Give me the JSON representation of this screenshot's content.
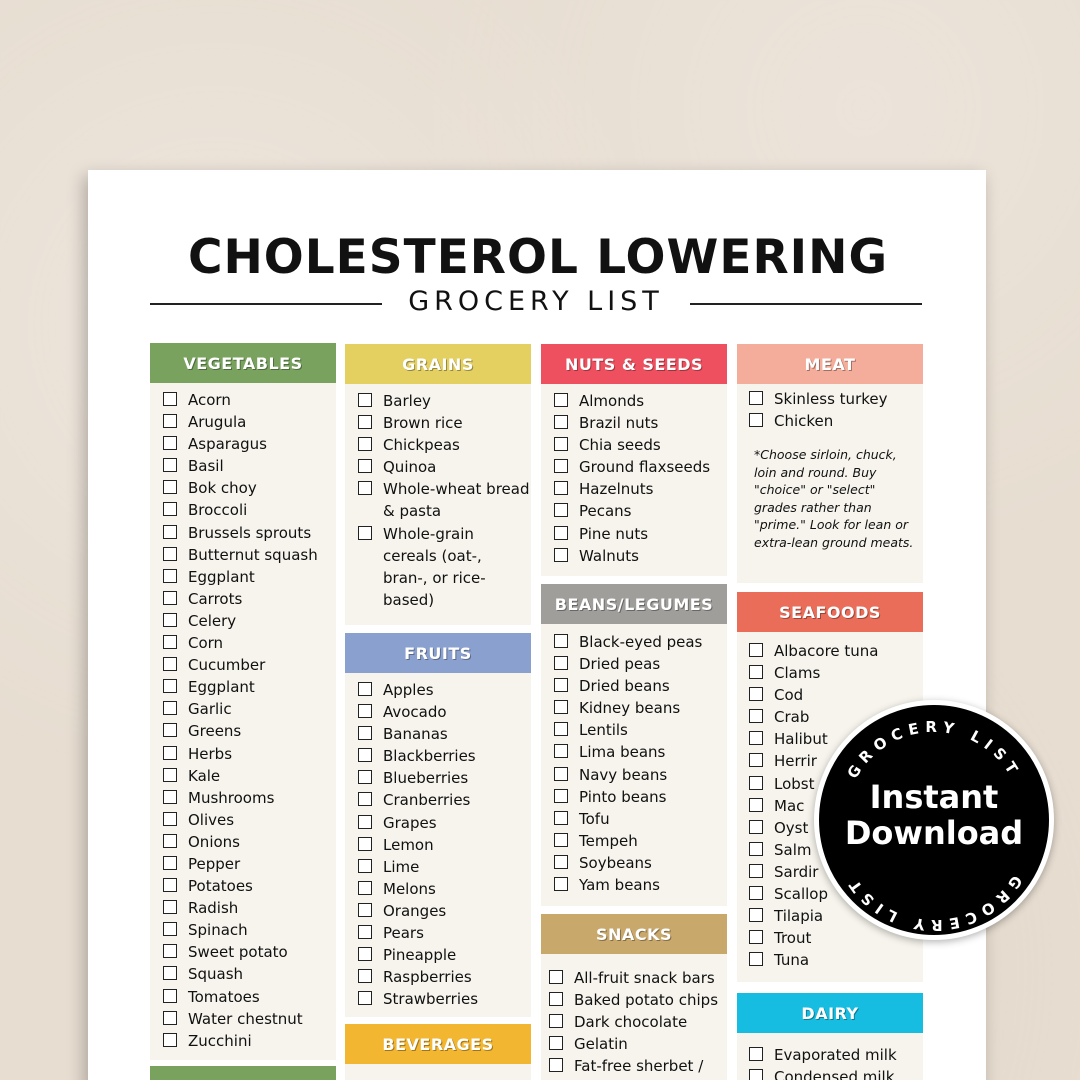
{
  "title": "CHOLESTEROL LOWERING",
  "subtitle": "GROCERY LIST",
  "sections": {
    "vegetables": {
      "title": "VEGETABLES",
      "color": "#78a25e",
      "items": [
        "Acorn",
        "Arugula",
        "Asparagus",
        "Basil",
        "Bok choy",
        "Broccoli",
        "Brussels sprouts",
        "Butternut squash",
        "Eggplant",
        "Carrots",
        "Celery",
        "Corn",
        "Cucumber",
        "Eggplant",
        "Garlic",
        "Greens",
        "Herbs",
        "Kale",
        "Mushrooms",
        "Olives",
        "Onions",
        "Pepper",
        "Potatoes",
        "Radish",
        "Spinach",
        "Sweet potato",
        "Squash",
        "Tomatoes",
        "Water chestnut",
        "Zucchini"
      ]
    },
    "grains": {
      "title": "GRAINS",
      "color": "#e4cf61",
      "items": [
        "Barley",
        "Brown rice",
        "Chickpeas",
        "Quinoa",
        "Whole-wheat bread & pasta",
        "Whole-grain cereals (oat-, bran-, or rice-based)"
      ]
    },
    "fruits": {
      "title": "FRUITS",
      "color": "#8aa1cf",
      "items": [
        "Apples",
        "Avocado",
        "Bananas",
        "Blackberries",
        "Blueberries",
        "Cranberries",
        "Grapes",
        "Lemon",
        "Lime",
        "Melons",
        "Oranges",
        "Pears",
        "Pineapple",
        "Raspberries",
        "Strawberries"
      ]
    },
    "beverages": {
      "title": "BEVERAGES",
      "color": "#f2b631"
    },
    "nuts_seeds": {
      "title": "NUTS & SEEDS",
      "color": "#ef5060",
      "items": [
        "Almonds",
        "Brazil nuts",
        "Chia seeds",
        "Ground flaxseeds",
        "Hazelnuts",
        "Pecans",
        "Pine nuts",
        "Walnuts"
      ]
    },
    "beans": {
      "title": "BEANS/LEGUMES",
      "color": "#a09e9b",
      "items": [
        "Black-eyed peas",
        "Dried peas",
        "Dried beans",
        "Kidney beans",
        "Lentils",
        "Lima beans",
        "Navy beans",
        "Pinto beans",
        "Tofu",
        "Tempeh",
        "Soybeans",
        "Yam beans"
      ]
    },
    "snacks": {
      "title": "SNACKS",
      "color": "#c9a86c",
      "items": [
        "All-fruit snack bars",
        "Baked potato chips",
        "Dark chocolate",
        "Gelatin",
        "Fat-free sherbet /"
      ]
    },
    "meat": {
      "title": "MEAT",
      "color": "#f4ad9a",
      "items": [
        "Skinless turkey",
        "Chicken"
      ],
      "note": "*Choose sirloin, chuck, loin and round. Buy \"choice\" or \"select\" grades rather than \"prime.\" Look for lean or extra-lean ground meats."
    },
    "seafoods": {
      "title": "SEAFOODS",
      "color": "#ea6d5a",
      "items": [
        "Albacore tuna",
        "Clams",
        "Cod",
        "Crab",
        "Halibut",
        "Herrir",
        "Lobst",
        "Mac",
        "Oyst",
        "Salm",
        "Sardir",
        "Scallop",
        "Tilapia",
        "Trout",
        "Tuna"
      ]
    },
    "dairy": {
      "title": "DAIRY",
      "color": "#17bde0",
      "items": [
        "Evaporated milk",
        "Condensed milk"
      ]
    }
  },
  "badge": {
    "ring_text": "GROCERY LIST",
    "line1": "Instant",
    "line2": "Download"
  }
}
